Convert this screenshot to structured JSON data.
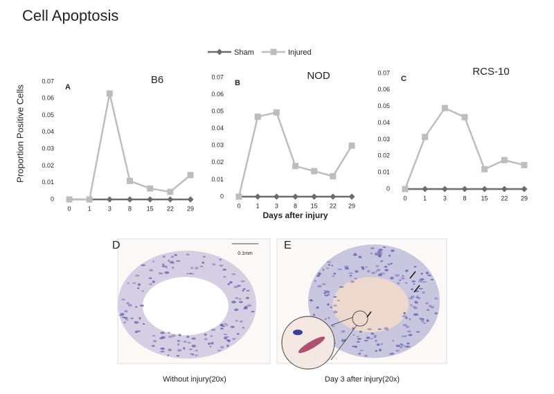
{
  "title": "Cell Apoptosis",
  "panels": [
    {
      "label": "D",
      "caption": "Without injury(20x)",
      "scale_bar": "0.1mm"
    },
    {
      "label": "E",
      "caption": "Day 3  after injury(20x)"
    }
  ],
  "chart_data": [
    {
      "type": "line",
      "title": "B6",
      "panel": "A",
      "ylabel": "Proportion Positive Cells",
      "categories": [
        "0",
        "1",
        "3",
        "8",
        "15",
        "22",
        "29"
      ],
      "series": [
        {
          "name": "Sham",
          "color": "#6b6b6b",
          "marker": "diamond",
          "values": [
            0,
            0,
            0,
            0,
            0,
            0,
            0
          ]
        },
        {
          "name": "Injured",
          "color": "#bdbdbd",
          "marker": "square",
          "values": [
            0,
            0,
            0.063,
            0.011,
            0.0065,
            0.0045,
            0.0145
          ]
        }
      ],
      "ylim": [
        0,
        0.07
      ],
      "yticks": [
        0,
        0.01,
        0.02,
        0.03,
        0.04,
        0.05,
        0.06,
        0.07
      ]
    },
    {
      "type": "line",
      "title": "NOD",
      "panel": "B",
      "xlabel": "Days after injury",
      "categories": [
        "0",
        "1",
        "3",
        "8",
        "15",
        "22",
        "29"
      ],
      "series": [
        {
          "color": "#6b6b6b",
          "marker": "diamond",
          "values": [
            0,
            0,
            0,
            0,
            0,
            0,
            0
          ]
        },
        {
          "color": "#bdbdbd",
          "marker": "square",
          "values": [
            0,
            0.047,
            0.0495,
            0.018,
            0.015,
            0.012,
            0.03
          ]
        }
      ],
      "ylim": [
        0,
        0.07
      ],
      "yticks": [
        0,
        0.01,
        0.02,
        0.03,
        0.04,
        0.05,
        0.06,
        0.07
      ]
    },
    {
      "type": "line",
      "title": "RCS-10",
      "panel": "C",
      "categories": [
        "0",
        "1",
        "3",
        "8",
        "15",
        "22",
        "29"
      ],
      "series": [
        {
          "color": "#6b6b6b",
          "marker": "diamond",
          "values": [
            0,
            0,
            0,
            0,
            0,
            0,
            0
          ]
        },
        {
          "color": "#bdbdbd",
          "marker": "square",
          "values": [
            0,
            0.0315,
            0.049,
            0.0435,
            0.012,
            0.0175,
            0.0145
          ]
        }
      ],
      "ylim": [
        0,
        0.07
      ],
      "yticks": [
        0,
        0.01,
        0.02,
        0.03,
        0.04,
        0.05,
        0.06,
        0.07
      ]
    }
  ]
}
